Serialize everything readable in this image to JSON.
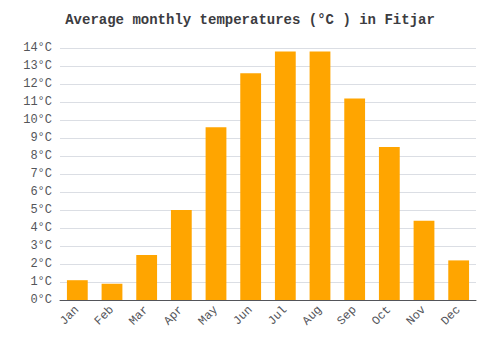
{
  "chart_data": {
    "type": "bar",
    "title": "Average monthly temperatures (°C ) in Fitjar",
    "categories": [
      "Jan",
      "Feb",
      "Mar",
      "Apr",
      "May",
      "Jun",
      "Jul",
      "Aug",
      "Sep",
      "Oct",
      "Nov",
      "Dec"
    ],
    "values": [
      1.1,
      0.9,
      2.5,
      5.0,
      9.6,
      12.6,
      13.8,
      13.8,
      11.2,
      8.5,
      4.4,
      2.2
    ],
    "color": "#FFA500",
    "ylim": [
      0,
      14
    ],
    "yticks": [
      {
        "value": 0,
        "label": "0°C"
      },
      {
        "value": 1,
        "label": "1°C"
      },
      {
        "value": 2,
        "label": "2°C"
      },
      {
        "value": 3,
        "label": "3°C"
      },
      {
        "value": 4,
        "label": "4°C"
      },
      {
        "value": 5,
        "label": "5°C"
      },
      {
        "value": 6,
        "label": "6°C"
      },
      {
        "value": 7,
        "label": "7°C"
      },
      {
        "value": 8,
        "label": "8°C"
      },
      {
        "value": 9,
        "label": "9°C"
      },
      {
        "value": 10,
        "label": "10°C"
      },
      {
        "value": 11,
        "label": "11°C"
      },
      {
        "value": 12,
        "label": "12°C"
      },
      {
        "value": 13,
        "label": "13°C"
      },
      {
        "value": 14,
        "label": "14°C"
      }
    ],
    "grid": true
  }
}
